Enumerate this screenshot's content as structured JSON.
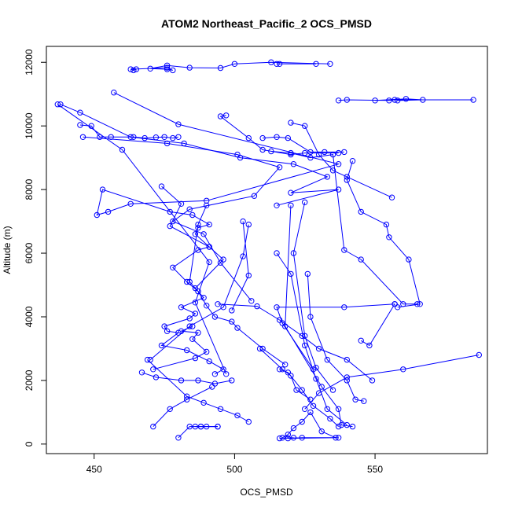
{
  "chart_data": {
    "type": "line",
    "title": "ATOM2 Northeast_Pacific_2 OCS_PMSD",
    "xlabel": "OCS_PMSD",
    "ylabel": "Altitude (m)",
    "xlim": [
      433,
      590
    ],
    "ylim": [
      -300,
      12500
    ],
    "xticks": [
      450,
      500,
      550
    ],
    "yticks": [
      0,
      2000,
      4000,
      6000,
      8000,
      10000,
      12000
    ],
    "grid": false,
    "series_color": "#0000ff",
    "series": [
      {
        "x": [
          534,
          513,
          500,
          495,
          484,
          476,
          470,
          476,
          478,
          476,
          463,
          464,
          465
        ],
        "y": [
          11950,
          12000,
          11950,
          11820,
          11830,
          11900,
          11800,
          11780,
          11750,
          11830,
          11780,
          11750,
          11780
        ]
      },
      {
        "x": [
          516,
          529,
          515
        ],
        "y": [
          11950,
          11950,
          11950
        ]
      },
      {
        "x": [
          457,
          480,
          537,
          490,
          463,
          455,
          451,
          453,
          477,
          485,
          491,
          487,
          486,
          491,
          487,
          478,
          483,
          487,
          489,
          481,
          486,
          484,
          475,
          476,
          480,
          474,
          483,
          491,
          496,
          493
        ],
        "y": [
          11050,
          10050,
          8800,
          7650,
          7550,
          7300,
          7200,
          8000,
          7300,
          7200,
          6900,
          6800,
          6600,
          6200,
          6100,
          5550,
          5100,
          4800,
          4600,
          4300,
          4100,
          3950,
          3700,
          3550,
          3500,
          3100,
          2950,
          2600,
          2350,
          2200
        ]
      },
      {
        "x": [
          437,
          460,
          491,
          486,
          497
        ],
        "y": [
          10680,
          9250,
          5720,
          4450,
          2200
        ]
      },
      {
        "x": [
          438,
          445,
          463,
          482,
          502,
          521,
          533,
          520,
          537,
          515
        ],
        "y": [
          10680,
          10420,
          9650,
          9450,
          9000,
          8800,
          8400,
          7900,
          8000,
          7500
        ]
      },
      {
        "x": [
          445,
          449,
          452,
          456,
          464,
          468,
          472,
          475,
          478,
          480
        ],
        "y": [
          10030,
          10000,
          9650,
          9650,
          9650,
          9620,
          9640,
          9650,
          9620,
          9650
        ]
      },
      {
        "x": [
          446,
          476,
          501,
          516,
          507,
          484,
          478,
          489,
          495,
          506
        ],
        "y": [
          9650,
          9450,
          9100,
          8700,
          7800,
          7380,
          7000,
          6600,
          5700,
          4500
        ]
      },
      {
        "x": [
          474,
          481,
          477,
          491,
          496,
          486
        ],
        "y": [
          8100,
          7550,
          6850,
          6200,
          5800,
          4900
        ]
      },
      {
        "x": [
          471,
          486,
          490,
          485,
          487,
          481,
          485
        ],
        "y": [
          2350,
          2700,
          2900,
          3300,
          3500,
          3550,
          3700
        ]
      },
      {
        "x": [
          497,
          495,
          505,
          510,
          520,
          525,
          537
        ],
        "y": [
          10330,
          10300,
          9620,
          9250,
          9100,
          9150,
          9150
        ]
      },
      {
        "x": [
          510,
          515,
          519,
          527,
          532,
          539
        ],
        "y": [
          9620,
          9650,
          9620,
          9180,
          9180,
          9180
        ]
      },
      {
        "x": [
          520,
          525,
          530,
          535,
          540,
          556
        ],
        "y": [
          10100,
          10000,
          9100,
          8600,
          8400,
          7750
        ]
      },
      {
        "x": [
          550,
          561,
          567,
          558
        ],
        "y": [
          10800,
          10850,
          10820,
          10800
        ]
      },
      {
        "x": [
          537,
          540,
          555,
          557,
          585
        ],
        "y": [
          10800,
          10820,
          10800,
          10820,
          10820
        ]
      },
      {
        "x": [
          513,
          520,
          527,
          535,
          539,
          545,
          560,
          565
        ],
        "y": [
          9200,
          9150,
          9000,
          9100,
          6100,
          5800,
          4400,
          4400
        ]
      },
      {
        "x": [
          542,
          540,
          545,
          554,
          555,
          562,
          566,
          558
        ],
        "y": [
          8900,
          8300,
          7300,
          6900,
          6500,
          5800,
          4400,
          4300
        ]
      },
      {
        "x": [
          545,
          548,
          557
        ],
        "y": [
          3250,
          3100,
          4400
        ]
      },
      {
        "x": [
          520,
          518,
          531,
          537,
          538,
          542
        ],
        "y": [
          7500,
          3700,
          1800,
          1100,
          600,
          550
        ]
      },
      {
        "x": [
          515,
          520,
          525,
          529,
          533,
          540
        ],
        "y": [
          6000,
          5350,
          3100,
          2050,
          1100,
          600
        ]
      },
      {
        "x": [
          525,
          521,
          525,
          529,
          535
        ],
        "y": [
          7600,
          6000,
          3400,
          2400,
          1700
        ]
      },
      {
        "x": [
          526,
          527,
          533,
          540,
          543,
          546
        ],
        "y": [
          5350,
          4000,
          2650,
          2000,
          1400,
          1350
        ]
      },
      {
        "x": [
          557,
          539,
          515,
          517,
          528
        ],
        "y": [
          4400,
          4300,
          4300,
          3800,
          2350
        ]
      },
      {
        "x": [
          494,
          508,
          516,
          524,
          530,
          540,
          549
        ],
        "y": [
          4400,
          4330,
          3900,
          3400,
          3000,
          2650,
          2000
        ]
      },
      {
        "x": [
          587,
          560,
          540,
          530,
          525
        ],
        "y": [
          2800,
          2350,
          2100,
          1600,
          1100
        ]
      },
      {
        "x": [
          505,
          503,
          496,
          484,
          470
        ],
        "y": [
          6900,
          5900,
          4300,
          3700,
          2650
        ]
      },
      {
        "x": [
          503,
          505,
          499
        ],
        "y": [
          7000,
          5300,
          4200
        ]
      },
      {
        "x": [
          490,
          487,
          484,
          487,
          490,
          493,
          499,
          501,
          510,
          518
        ],
        "y": [
          7500,
          6900,
          5100,
          4800,
          4350,
          4000,
          3850,
          3650,
          3000,
          2500
        ]
      },
      {
        "x": [
          467,
          472,
          481,
          487,
          493,
          499
        ],
        "y": [
          2250,
          2100,
          2000,
          2000,
          1900,
          2000
        ]
      },
      {
        "x": [
          469,
          483,
          489,
          495,
          501,
          505
        ],
        "y": [
          2650,
          1500,
          1300,
          1100,
          900,
          700
        ]
      },
      {
        "x": [
          509,
          517,
          520,
          522,
          527
        ],
        "y": [
          3000,
          2350,
          2150,
          1700,
          1400
        ]
      },
      {
        "x": [
          516,
          519,
          524,
          528,
          534,
          537
        ],
        "y": [
          2350,
          2250,
          1700,
          1200,
          800,
          550
        ]
      },
      {
        "x": [
          471,
          477,
          483,
          492
        ],
        "y": [
          550,
          1100,
          1400,
          1800
        ]
      },
      {
        "x": [
          480,
          484,
          488,
          490,
          494
        ],
        "y": [
          200,
          550,
          550,
          550,
          550
        ]
      },
      {
        "x": [
          486,
          488,
          494
        ],
        "y": [
          550,
          550,
          550
        ]
      },
      {
        "x": [
          517,
          519,
          521,
          524,
          527,
          531,
          536
        ],
        "y": [
          200,
          300,
          500,
          700,
          1000,
          400,
          200
        ]
      },
      {
        "x": [
          521,
          516,
          524,
          537,
          519
        ],
        "y": [
          200,
          180,
          200,
          200,
          180
        ]
      }
    ]
  }
}
